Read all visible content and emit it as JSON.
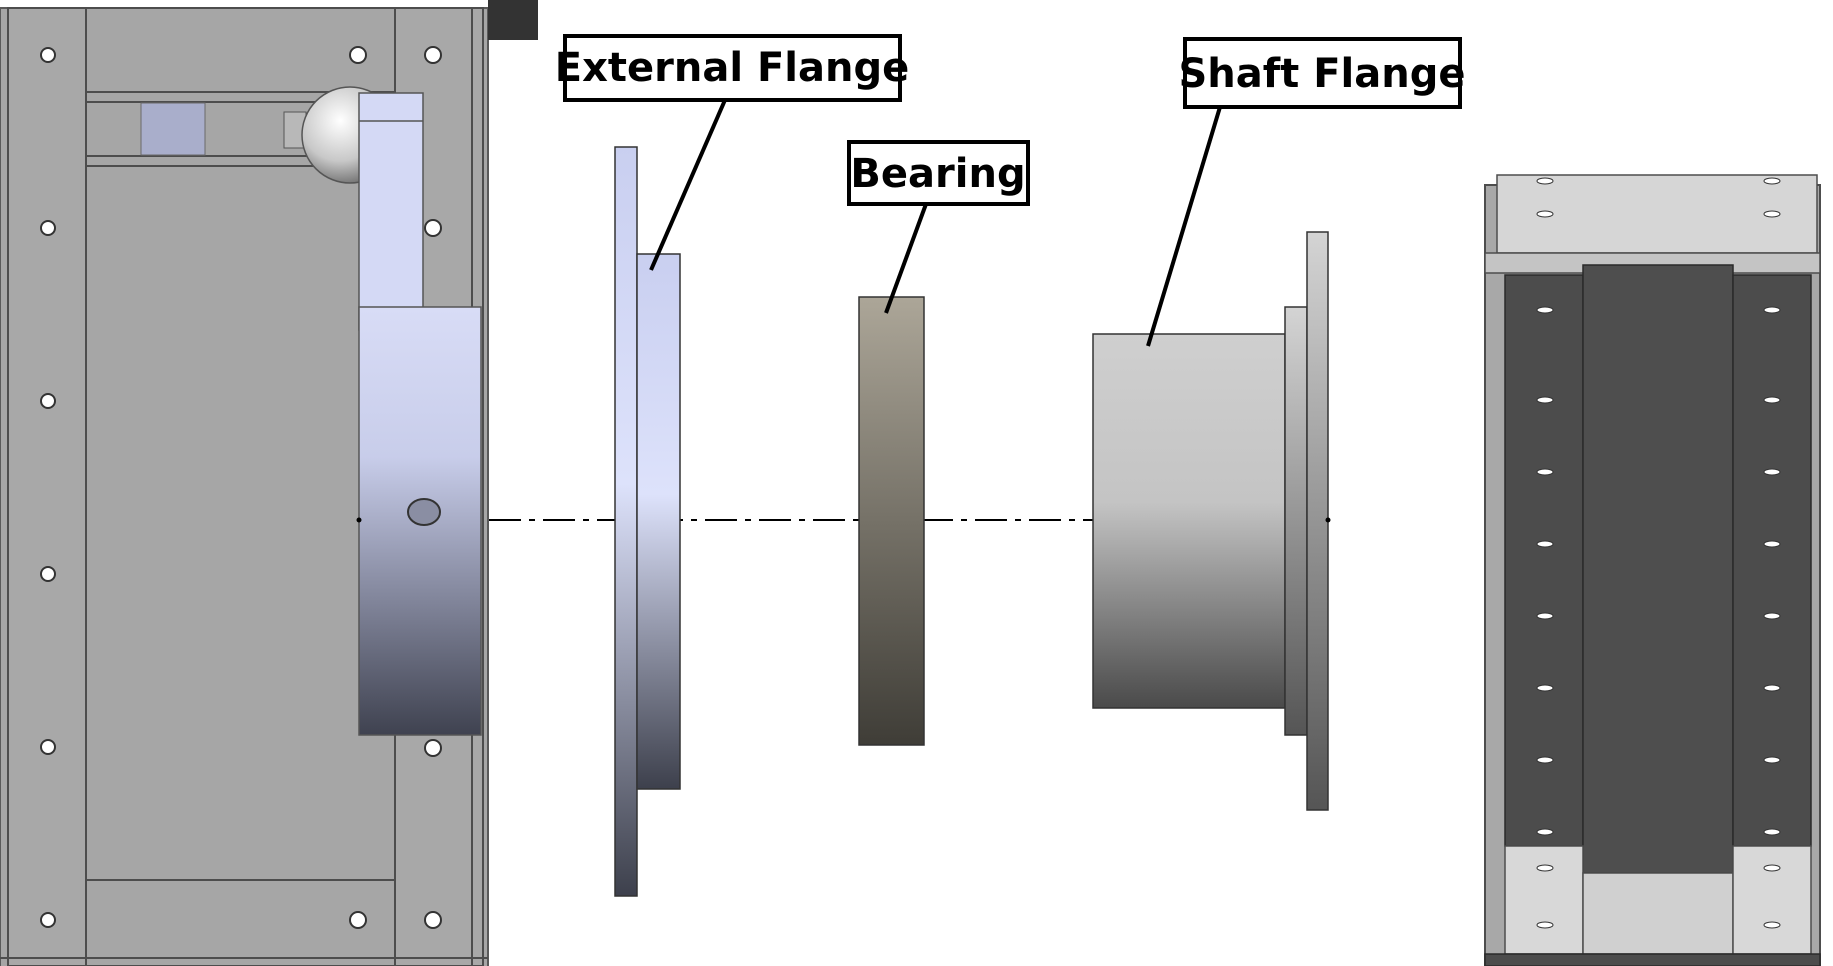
{
  "labels": {
    "external_flange": "External Flange",
    "bearing": "Bearing",
    "shaft_flange": "Shaft Flange"
  },
  "colors": {
    "background": "#ffffff",
    "housing_gray": "#a6a6a6",
    "housing_edge": "#5a5a5a",
    "flange_blue_light": "#dde2fb",
    "flange_blue_dark": "#3d404c",
    "bearing_light": "#aba698",
    "bearing_dark": "#3f3d37",
    "shaft_light": "#cfcfcf",
    "shaft_dark": "#4a4a4a",
    "dark_block": "#4c4c4c",
    "outline": "#000000"
  }
}
